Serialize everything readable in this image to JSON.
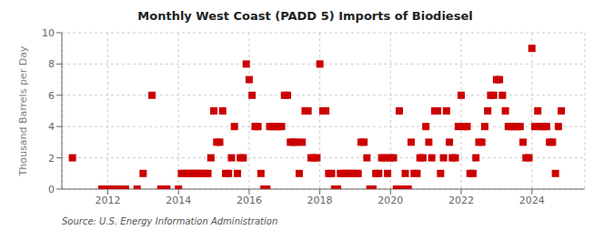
{
  "chart_data": {
    "type": "scatter",
    "title": "Monthly West Coast (PADD 5) Imports of Biodiesel",
    "ylabel": "Thousand Barrels per Day",
    "source": "Source: U.S. Energy Information Administration",
    "color": "#cc0000",
    "marker": "square",
    "grid": true,
    "xlim": [
      2010.7,
      2025.5
    ],
    "xticks": [
      2012,
      2014,
      2016,
      2018,
      2020,
      2022,
      2024
    ],
    "ylim": [
      0,
      10
    ],
    "yticks": [
      0,
      2,
      4,
      6,
      8,
      10
    ],
    "x": [
      2011.0,
      2011.83,
      2012.0,
      2012.17,
      2012.33,
      2012.5,
      2012.83,
      2013.0,
      2013.25,
      2013.5,
      2013.67,
      2014.0,
      2014.083,
      2014.167,
      2014.25,
      2014.333,
      2014.417,
      2014.5,
      2014.583,
      2014.667,
      2014.75,
      2014.833,
      2014.917,
      2015.0,
      2015.083,
      2015.167,
      2015.25,
      2015.333,
      2015.417,
      2015.5,
      2015.583,
      2015.667,
      2015.75,
      2015.833,
      2015.917,
      2016.0,
      2016.083,
      2016.167,
      2016.25,
      2016.333,
      2016.417,
      2016.5,
      2016.583,
      2016.667,
      2016.75,
      2016.833,
      2016.917,
      2017.0,
      2017.083,
      2017.167,
      2017.25,
      2017.333,
      2017.417,
      2017.5,
      2017.583,
      2017.667,
      2017.75,
      2017.833,
      2017.917,
      2018.0,
      2018.083,
      2018.167,
      2018.25,
      2018.333,
      2018.417,
      2018.5,
      2018.583,
      2018.667,
      2018.75,
      2018.833,
      2018.917,
      2019.0,
      2019.083,
      2019.167,
      2019.25,
      2019.333,
      2019.417,
      2019.5,
      2019.583,
      2019.667,
      2019.75,
      2019.833,
      2019.917,
      2020.0,
      2020.083,
      2020.167,
      2020.25,
      2020.333,
      2020.417,
      2020.5,
      2020.583,
      2020.667,
      2020.75,
      2020.833,
      2020.917,
      2021.0,
      2021.083,
      2021.167,
      2021.25,
      2021.333,
      2021.417,
      2021.5,
      2021.583,
      2021.667,
      2021.75,
      2021.833,
      2021.917,
      2022.0,
      2022.083,
      2022.167,
      2022.25,
      2022.333,
      2022.417,
      2022.5,
      2022.583,
      2022.667,
      2022.75,
      2022.833,
      2022.917,
      2023.0,
      2023.083,
      2023.167,
      2023.25,
      2023.333,
      2023.417,
      2023.5,
      2023.583,
      2023.667,
      2023.75,
      2023.833,
      2023.917,
      2024.0,
      2024.083,
      2024.167,
      2024.25,
      2024.333,
      2024.417,
      2024.5,
      2024.583,
      2024.667,
      2024.75,
      2024.833
    ],
    "values": [
      2,
      0,
      0,
      0,
      0,
      0,
      0,
      1,
      6,
      0,
      0,
      0,
      1,
      1,
      1,
      1,
      1,
      1,
      1,
      1,
      1,
      1,
      2,
      5,
      3,
      3,
      5,
      1,
      1,
      2,
      4,
      1,
      2,
      2,
      8,
      7,
      6,
      4,
      4,
      1,
      0,
      0,
      4,
      4,
      4,
      4,
      4,
      6,
      6,
      3,
      3,
      3,
      1,
      3,
      5,
      5,
      2,
      2,
      2,
      8,
      5,
      5,
      1,
      1,
      0,
      0,
      1,
      1,
      1,
      1,
      1,
      1,
      1,
      3,
      3,
      2,
      0,
      0,
      1,
      1,
      2,
      2,
      1,
      2,
      2,
      0,
      5,
      0,
      1,
      0,
      3,
      1,
      1,
      2,
      2,
      4,
      3,
      2,
      5,
      5,
      1,
      2,
      5,
      3,
      2,
      2,
      4,
      6,
      4,
      4,
      1,
      1,
      2,
      3,
      3,
      4,
      5,
      6,
      6,
      7,
      7,
      6,
      5,
      4,
      4,
      4,
      4,
      4,
      3,
      2,
      2,
      9,
      4,
      5,
      4,
      4,
      4,
      3,
      3,
      1,
      4,
      5
    ]
  }
}
